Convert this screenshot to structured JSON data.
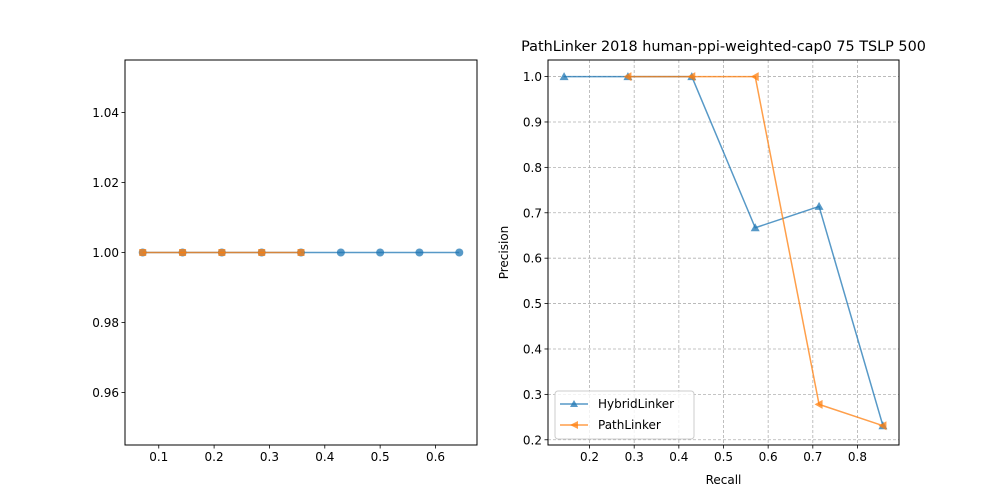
{
  "chart_data": [
    {
      "type": "line",
      "title": "",
      "xlabel": "",
      "ylabel": "",
      "xlim": [
        0.039,
        0.675
      ],
      "ylim": [
        0.945,
        1.055
      ],
      "xticks": [
        0.1,
        0.2,
        0.3,
        0.4,
        0.5,
        0.6
      ],
      "xtick_labels": [
        "0.1",
        "0.2",
        "0.3",
        "0.4",
        "0.5",
        "0.6"
      ],
      "yticks": [
        0.96,
        0.98,
        1.0,
        1.02,
        1.04
      ],
      "ytick_labels": [
        "0.96",
        "0.98",
        "1.00",
        "1.02",
        "1.04"
      ],
      "grid": false,
      "legend": "none",
      "series": [
        {
          "color": "#1f77b4",
          "marker": "circle",
          "x": [
            0.071,
            0.143,
            0.214,
            0.286,
            0.357,
            0.429,
            0.5,
            0.571,
            0.643
          ],
          "y": [
            1.0,
            1.0,
            1.0,
            1.0,
            1.0,
            1.0,
            1.0,
            1.0,
            1.0
          ]
        },
        {
          "color": "#ff7f0e",
          "marker": "square",
          "x": [
            0.071,
            0.143,
            0.214,
            0.286,
            0.357
          ],
          "y": [
            1.0,
            1.0,
            1.0,
            1.0,
            1.0
          ]
        }
      ]
    },
    {
      "type": "line",
      "title": "PathLinker 2018 human-ppi-weighted-cap0 75 TSLP 500",
      "xlabel": "Recall",
      "ylabel": "Precision",
      "xlim": [
        0.107,
        0.893
      ],
      "ylim": [
        0.1885,
        1.0365
      ],
      "xticks": [
        0.2,
        0.3,
        0.4,
        0.5,
        0.6,
        0.7,
        0.8
      ],
      "xtick_labels": [
        "0.2",
        "0.3",
        "0.4",
        "0.5",
        "0.6",
        "0.7",
        "0.8"
      ],
      "yticks": [
        0.2,
        0.3,
        0.4,
        0.5,
        0.6,
        0.7,
        0.8,
        0.9,
        1.0
      ],
      "ytick_labels": [
        "0.2",
        "0.3",
        "0.4",
        "0.5",
        "0.6",
        "0.7",
        "0.8",
        "0.9",
        "1.0"
      ],
      "grid": true,
      "legend": "lower-left",
      "series": [
        {
          "name": "HybridLinker",
          "color": "#1f77b4",
          "marker": "triangle-up",
          "x": [
            0.143,
            0.286,
            0.429,
            0.571,
            0.714,
            0.857
          ],
          "y": [
            1.0,
            1.0,
            1.0,
            0.667,
            0.714,
            0.231
          ]
        },
        {
          "name": "PathLinker",
          "color": "#ff7f0e",
          "marker": "triangle-left",
          "x": [
            0.286,
            0.429,
            0.571,
            0.714,
            0.857
          ],
          "y": [
            1.0,
            1.0,
            1.0,
            0.278,
            0.231
          ]
        }
      ]
    }
  ]
}
